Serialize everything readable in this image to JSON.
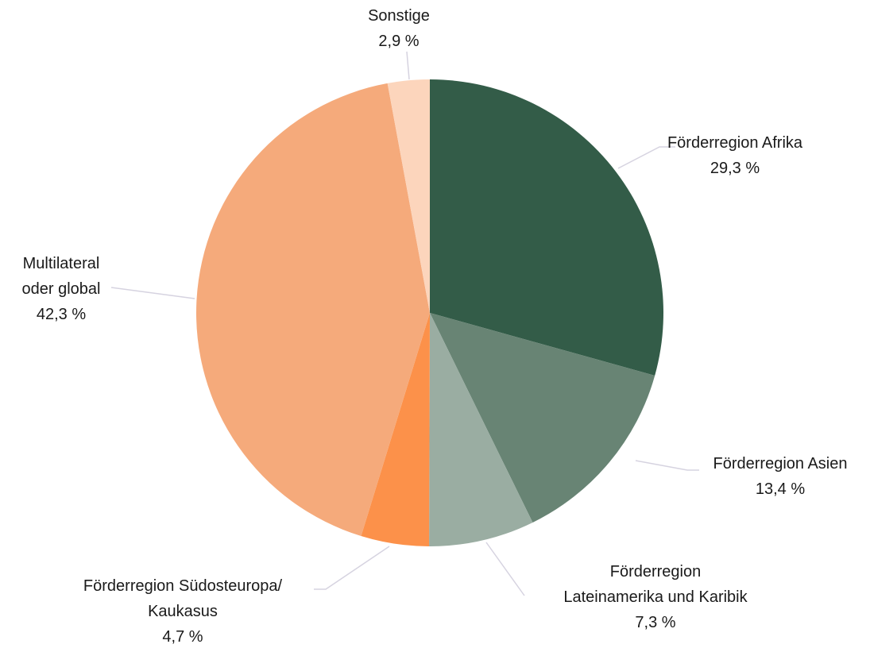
{
  "chart_data": {
    "type": "pie",
    "categories": [
      "Förderregion Afrika",
      "Förderregion Asien",
      "Förderregion\nLateinamerika und Karibik",
      "Förderregion Südosteuropa/\nKaukasus",
      "Multilateral\noder global",
      "Sonstige"
    ],
    "values": [
      29.3,
      13.4,
      7.3,
      4.7,
      42.3,
      2.9
    ],
    "value_labels": [
      "29,3 %",
      "13,4 %",
      "7,3 %",
      "4,7 %",
      "42,3 %",
      "2,9 %"
    ],
    "colors": [
      "#335c48",
      "#688474",
      "#9aada2",
      "#fc914a",
      "#f5aa7b",
      "#fcd5bc"
    ]
  }
}
